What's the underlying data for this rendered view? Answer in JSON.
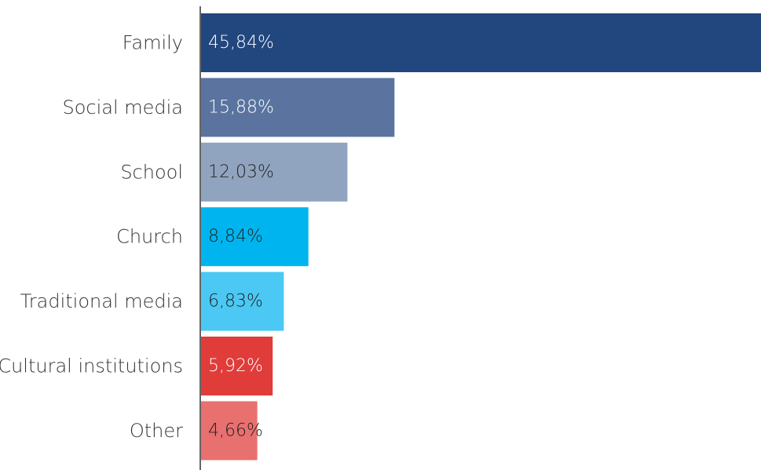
{
  "chart_data": {
    "type": "bar",
    "orientation": "horizontal",
    "title": "",
    "xlabel": "",
    "ylabel": "",
    "xlim": [
      0,
      45.84
    ],
    "grid": false,
    "legend": "none",
    "categories": [
      "Family",
      "Social media",
      "School",
      "Church",
      "Traditional media",
      "Cultural institutions",
      "Other"
    ],
    "values": [
      45.84,
      15.88,
      12.03,
      8.84,
      6.83,
      5.92,
      4.66
    ],
    "value_labels": [
      "45,84%",
      "15,88%",
      "12,03%",
      "8,84%",
      "6,83%",
      "5,92%",
      "4,66%"
    ],
    "colors": [
      "#22467E",
      "#5A749F",
      "#91A4BF",
      "#00B5EF",
      "#4BC9F4",
      "#E03C3A",
      "#E8706E"
    ],
    "label_colors": [
      "#FFFFFF",
      "#FFFFFF",
      "#222222",
      "#222222",
      "#222222",
      "#FFFFFF",
      "#222222"
    ],
    "axis_color": "#666666"
  }
}
